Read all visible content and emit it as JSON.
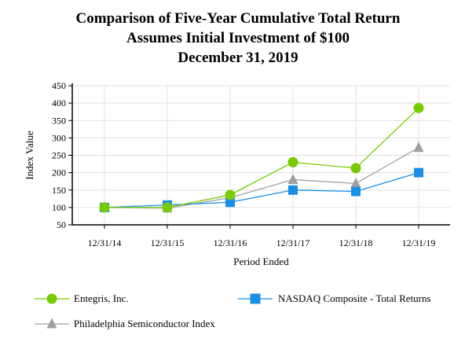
{
  "chart_data": {
    "type": "line",
    "title": [
      "Comparison of Five-Year Cumulative Total Return",
      "Assumes Initial Investment of $100",
      "December 31, 2019"
    ],
    "xlabel": "Period Ended",
    "ylabel": "Index Value",
    "categories": [
      "12/31/14",
      "12/31/15",
      "12/31/16",
      "12/31/17",
      "12/31/18",
      "12/31/19"
    ],
    "ylim": [
      50,
      450
    ],
    "yticks": [
      50,
      100,
      150,
      200,
      250,
      300,
      350,
      400,
      450
    ],
    "grid": true,
    "legend_position": "bottom",
    "series": [
      {
        "name": "Entegris, Inc.",
        "color": "#77cc00",
        "marker": "circle",
        "values": [
          100,
          100,
          136,
          230,
          213,
          386
        ]
      },
      {
        "name": "NASDAQ Composite - Total Returns",
        "color": "#1a8fe8",
        "marker": "square",
        "values": [
          100,
          107,
          115,
          150,
          146,
          200
        ]
      },
      {
        "name": "Philadelphia Semiconductor Index",
        "color": "#a0a0a0",
        "marker": "triangle",
        "values": [
          100,
          98,
          128,
          180,
          169,
          272
        ]
      }
    ]
  }
}
